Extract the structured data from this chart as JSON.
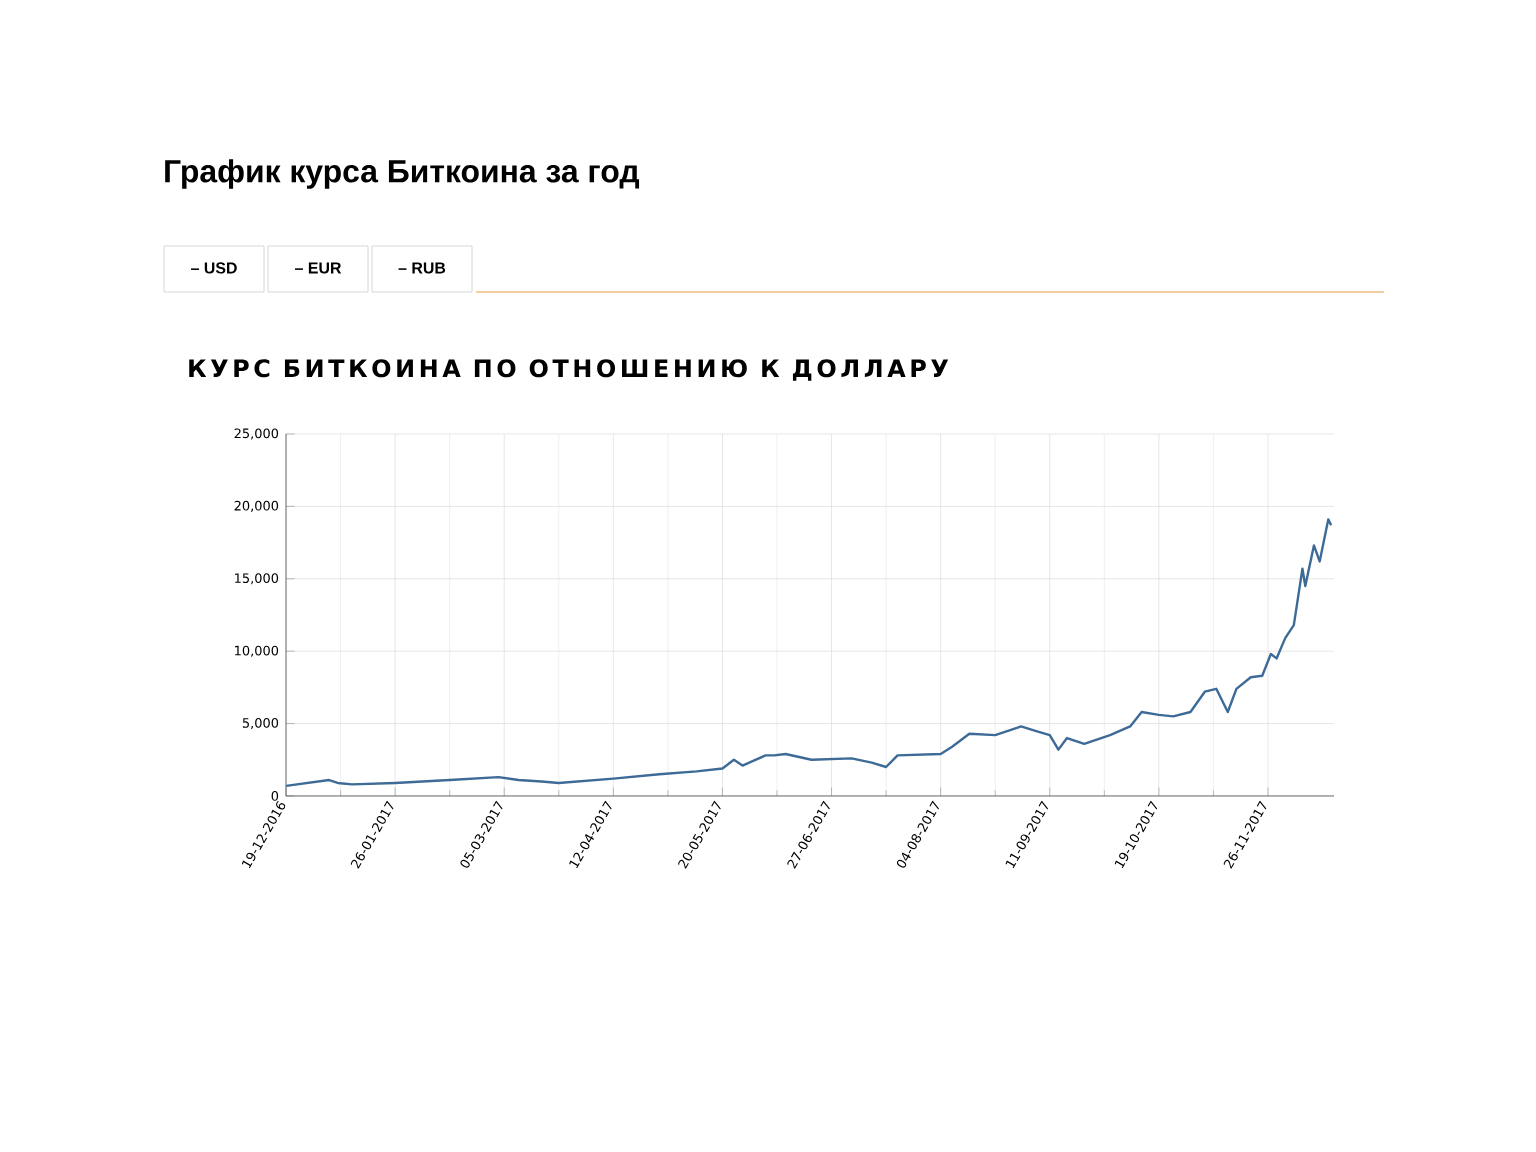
{
  "chart_data": {
    "type": "line",
    "title": "График курса Биткоина за год",
    "subtitle": "КУРС БИТКОИНА ПО ОТНОШЕНИЮ К ДОЛЛАРУ",
    "annotations": [
      "– USD",
      "– EUR",
      "– RUB"
    ],
    "x": [
      "2016-12-19",
      "2017-01-03",
      "2017-01-06",
      "2017-01-11",
      "2017-01-26",
      "2017-02-14",
      "2017-03-03",
      "2017-03-10",
      "2017-03-18",
      "2017-03-24",
      "2017-04-12",
      "2017-04-28",
      "2017-05-11",
      "2017-05-20",
      "2017-05-24",
      "2017-05-27",
      "2017-06-04",
      "2017-06-07",
      "2017-06-11",
      "2017-06-20",
      "2017-07-04",
      "2017-07-11",
      "2017-07-16",
      "2017-07-20",
      "2017-08-04",
      "2017-08-08",
      "2017-08-14",
      "2017-08-23",
      "2017-09-01",
      "2017-09-06",
      "2017-09-11",
      "2017-09-14",
      "2017-09-17",
      "2017-09-23",
      "2017-10-02",
      "2017-10-09",
      "2017-10-13",
      "2017-10-19",
      "2017-10-24",
      "2017-10-30",
      "2017-11-04",
      "2017-11-08",
      "2017-11-12",
      "2017-11-15",
      "2017-11-20",
      "2017-11-24",
      "2017-11-27",
      "2017-11-29",
      "2017-12-02",
      "2017-12-05",
      "2017-12-08",
      "2017-12-09",
      "2017-12-12",
      "2017-12-14",
      "2017-12-17",
      "2017-12-18"
    ],
    "series": [
      {
        "color": "#3d6a96",
        "values": [
          700,
          1100,
          900,
          800,
          900,
          1100,
          1300,
          1100,
          1000,
          900,
          1200,
          1500,
          1700,
          1900,
          2500,
          2100,
          2800,
          2800,
          2900,
          2500,
          2600,
          2300,
          2000,
          2800,
          2900,
          3400,
          4300,
          4200,
          4800,
          4500,
          4200,
          3200,
          4000,
          3600,
          4200,
          4800,
          5800,
          5600,
          5500,
          5800,
          7200,
          7400,
          5800,
          7400,
          8200,
          8300,
          9800,
          9500,
          10900,
          11800,
          15700,
          14500,
          17300,
          16200,
          19100,
          18700
        ]
      }
    ],
    "xlim": [
      "2016-12-19",
      "2017-12-19"
    ],
    "xticks": [
      {
        "value": "2016-12-19",
        "label": "19-12-2016"
      },
      {
        "value": "2017-01-26",
        "label": "26-01-2017"
      },
      {
        "value": "2017-03-05",
        "label": "05-03-2017"
      },
      {
        "value": "2017-04-12",
        "label": "12-04-2017"
      },
      {
        "value": "2017-05-20",
        "label": "20-05-2017"
      },
      {
        "value": "2017-06-27",
        "label": "27-06-2017"
      },
      {
        "value": "2017-08-04",
        "label": "04-08-2017"
      },
      {
        "value": "2017-09-11",
        "label": "11-09-2017"
      },
      {
        "value": "2017-10-19",
        "label": "19-10-2017"
      },
      {
        "value": "2017-11-26",
        "label": "26-11-2017"
      }
    ],
    "ylim": [
      0,
      25000
    ],
    "yticks": [
      {
        "value": 0,
        "label": "0"
      },
      {
        "value": 5000,
        "label": "5,000"
      },
      {
        "value": 10000,
        "label": "10,000"
      },
      {
        "value": 15000,
        "label": "15,000"
      },
      {
        "value": 20000,
        "label": "20,000"
      },
      {
        "value": 25000,
        "label": "25,000"
      }
    ],
    "grid": true,
    "marker": "none",
    "line_style": "solid"
  }
}
